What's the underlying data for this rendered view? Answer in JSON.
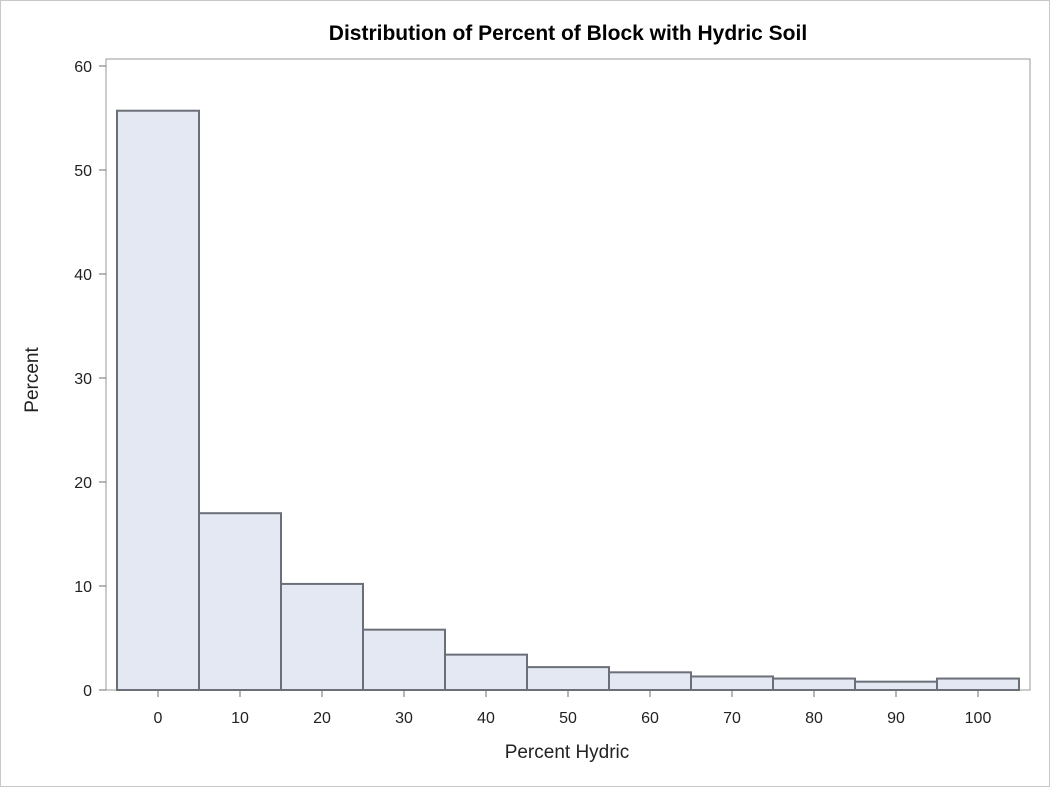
{
  "chart_data": {
    "type": "bar",
    "title": "Distribution of Percent of Block with Hydric Soil",
    "xlabel": "Percent Hydric",
    "ylabel": "Percent",
    "categories": [
      "0",
      "10",
      "20",
      "30",
      "40",
      "50",
      "60",
      "70",
      "80",
      "90",
      "100"
    ],
    "bins": [
      0,
      10,
      20,
      30,
      40,
      50,
      60,
      70,
      80,
      90,
      100
    ],
    "values": [
      55.7,
      17.0,
      10.2,
      5.8,
      3.4,
      2.2,
      1.7,
      1.3,
      1.1,
      0.8,
      1.1
    ],
    "ylim": [
      0,
      60
    ],
    "yticks": [
      "0",
      "10",
      "20",
      "30",
      "40",
      "50",
      "60"
    ],
    "grid": false,
    "legend": "none",
    "colors": {
      "bar_fill": "#e3e8f2",
      "bar_stroke": "#6b6f78"
    }
  }
}
